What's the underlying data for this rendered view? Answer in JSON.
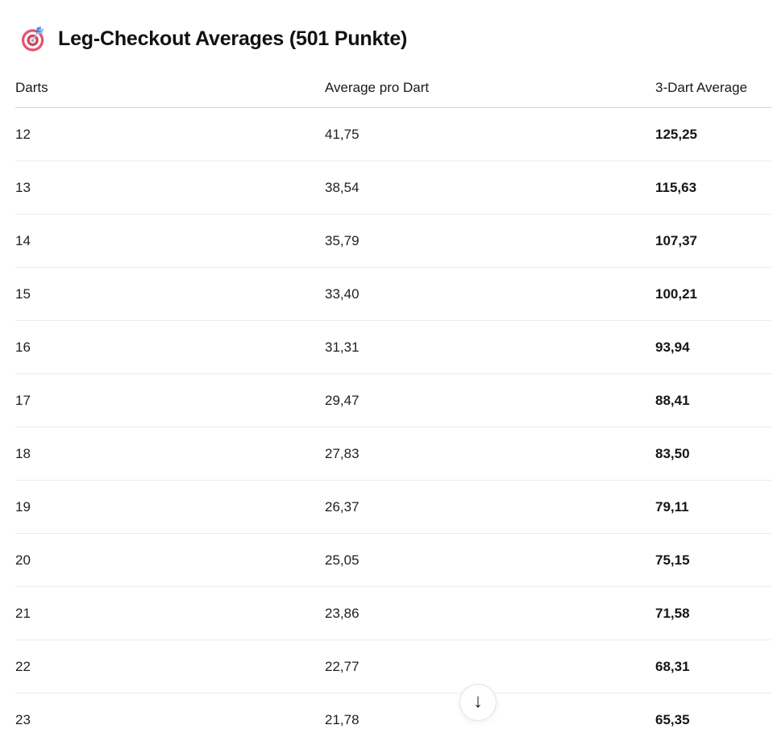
{
  "title": {
    "icon": "dart-target",
    "text": "Leg-Checkout Averages (501 Punkte)"
  },
  "table": {
    "columns": [
      "Darts",
      "Average pro Dart",
      "3-Dart Average"
    ],
    "rows": [
      {
        "darts": "12",
        "avg_per_dart": "41,75",
        "three_dart_avg": "125,25"
      },
      {
        "darts": "13",
        "avg_per_dart": "38,54",
        "three_dart_avg": "115,63"
      },
      {
        "darts": "14",
        "avg_per_dart": "35,79",
        "three_dart_avg": "107,37"
      },
      {
        "darts": "15",
        "avg_per_dart": "33,40",
        "three_dart_avg": "100,21"
      },
      {
        "darts": "16",
        "avg_per_dart": "31,31",
        "three_dart_avg": "93,94"
      },
      {
        "darts": "17",
        "avg_per_dart": "29,47",
        "three_dart_avg": "88,41"
      },
      {
        "darts": "18",
        "avg_per_dart": "27,83",
        "three_dart_avg": "83,50"
      },
      {
        "darts": "19",
        "avg_per_dart": "26,37",
        "three_dart_avg": "79,11"
      },
      {
        "darts": "20",
        "avg_per_dart": "25,05",
        "three_dart_avg": "75,15"
      },
      {
        "darts": "21",
        "avg_per_dart": "23,86",
        "three_dart_avg": "71,58"
      },
      {
        "darts": "22",
        "avg_per_dart": "22,77",
        "three_dart_avg": "68,31"
      },
      {
        "darts": "23",
        "avg_per_dart": "21,78",
        "three_dart_avg": "65,35"
      }
    ]
  },
  "scroll_button": {
    "glyph": "↓"
  },
  "colors": {
    "text_primary": "#1f1f1f",
    "header_underline": "#d4d4d4",
    "row_separator": "#ececec",
    "target_rose": "#e25570",
    "target_rose_dark": "#d6455f",
    "dart_blue": "#4b8fe0",
    "dart_blue_light": "#8fc0f2",
    "button_border": "#e4e4e4",
    "background": "#ffffff"
  }
}
